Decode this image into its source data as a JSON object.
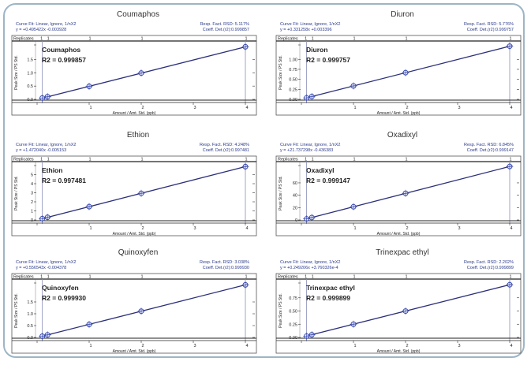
{
  "colors": {
    "line": "#2b2f7a",
    "marker": "#3a4bb0",
    "frame": "#9db5c4",
    "header_text": "#2b3a8a",
    "guide": "#8a90b8"
  },
  "common": {
    "replicates_label": "Replicates",
    "xlabel": "Amount / Amt. Std. (ppb)",
    "ylabel": "Peak Size / PS Std.",
    "x_ticks": [
      "1",
      "2",
      "3",
      "4"
    ],
    "x_values": [
      0.1,
      0.2,
      1,
      2,
      4
    ],
    "replicate_counts": [
      "1",
      "1",
      "1",
      "1",
      "1"
    ]
  },
  "chart_data": [
    {
      "type": "scatter",
      "title": "Coumaphos",
      "fit_line": "Curve Fit: Linear,  Ignore,   1/nX2",
      "equation": "y =   +0.495422x   -0.003928",
      "rsd": "Resp. Fact. RSD: 5.117%",
      "coeff": "Coeff. Det.(r2):0.999857",
      "annotation_name": "Coumaphos",
      "annotation_r2": "R2 = 0.999857",
      "x": [
        0.1,
        0.2,
        1,
        2,
        4
      ],
      "y": [
        0.05,
        0.1,
        0.49,
        0.99,
        1.98
      ],
      "slope": 0.495422,
      "intercept": -0.003928,
      "y_ticks": [
        "0.0",
        "0.5",
        "1.0",
        "1.5"
      ],
      "y_tick_values": [
        0,
        0.5,
        1.0,
        1.5
      ],
      "ylim": [
        0,
        2.05
      ],
      "xlim": [
        0,
        4.15
      ]
    },
    {
      "type": "scatter",
      "title": "Diuron",
      "fit_line": "Curve Fit: Linear,  Ignore,   1/nX2",
      "equation": "y =   +0.331258x   +0.003396",
      "rsd": "Resp. Fact. RSD: 5.776%",
      "coeff": "Coeff. Det.(r2):0.999757",
      "annotation_name": "Diuron",
      "annotation_r2": "R2 = 0.999757",
      "x": [
        0.1,
        0.2,
        1,
        2,
        4
      ],
      "y": [
        0.036,
        0.07,
        0.335,
        0.666,
        1.329
      ],
      "slope": 0.331258,
      "intercept": 0.003396,
      "y_ticks": [
        "0.00",
        "0.25",
        "0.50",
        "0.75",
        "1.00"
      ],
      "y_tick_values": [
        0,
        0.25,
        0.5,
        0.75,
        1.0
      ],
      "ylim": [
        0,
        1.36
      ],
      "xlim": [
        0,
        4.15
      ]
    },
    {
      "type": "scatter",
      "title": "Ethion",
      "fit_line": "Curve Fit: Linear,  Ignore,   1/nX2",
      "equation": "y =   +1.472040x   -0.005153",
      "rsd": "Resp. Fact. RSD: 4.248%",
      "coeff": "Coeff. Det.(r2):0.997481",
      "annotation_name": "Ethion",
      "annotation_r2": "R2 = 0.997481",
      "x": [
        0.1,
        0.2,
        1,
        2,
        4
      ],
      "y": [
        0.14,
        0.29,
        1.47,
        2.94,
        5.88
      ],
      "slope": 1.47204,
      "intercept": -0.005153,
      "y_ticks": [
        "0",
        "1",
        "2",
        "3",
        "4",
        "5"
      ],
      "y_tick_values": [
        0,
        1,
        2,
        3,
        4,
        5
      ],
      "ylim": [
        0,
        6.0
      ],
      "xlim": [
        0,
        4.15
      ]
    },
    {
      "type": "scatter",
      "title": "Oxadixyl",
      "fit_line": "Curve Fit: Linear,  Ignore,   1/nX2",
      "equation": "y =   +21.737298x   -0.436383",
      "rsd": "Resp. Fact. RSD: 6.845%",
      "coeff": "Coeff. Det.(r2):0.999147",
      "annotation_name": "Oxadixyl",
      "annotation_r2": "R2 = 0.999147",
      "x": [
        0.1,
        0.2,
        1,
        2,
        4
      ],
      "y": [
        1.7,
        3.9,
        21.3,
        43.0,
        86.5
      ],
      "slope": 21.737298,
      "intercept": -0.436383,
      "y_ticks": [
        "0",
        "20",
        "40",
        "60"
      ],
      "y_tick_values": [
        0,
        20,
        40,
        60
      ],
      "ylim": [
        0,
        88
      ],
      "xlim": [
        0,
        4.15
      ]
    },
    {
      "type": "scatter",
      "title": "Quinoxyfen",
      "fit_line": "Curve Fit: Linear,  Ignore,   1/nX2",
      "equation": "y =   +0.556543x   -0.004378",
      "rsd": "Resp. Fact. RSD: 3.038%",
      "coeff": "Coeff. Det.(r2):0.999930",
      "annotation_name": "Quinoxyfen",
      "annotation_r2": "R2 = 0.999930",
      "x": [
        0.1,
        0.2,
        1,
        2,
        4
      ],
      "y": [
        0.05,
        0.11,
        0.55,
        1.11,
        2.22
      ],
      "slope": 0.556543,
      "intercept": -0.004378,
      "y_ticks": [
        "0.0",
        "0.5",
        "1.0",
        "1.5"
      ],
      "y_tick_values": [
        0,
        0.5,
        1.0,
        1.5
      ],
      "ylim": [
        0,
        2.3
      ],
      "xlim": [
        0,
        4.15
      ]
    },
    {
      "type": "scatter",
      "title": "Trinexpac ethyl",
      "fit_line": "Curve Fit: Linear,  Ignore,   1/nX2",
      "equation": "y =   +0.249206x   +3.760326e-4",
      "rsd": "Resp. Fact. RSD: 2.202%",
      "coeff": "Coeff. Det.(r2):0.999899",
      "annotation_name": "Trinexpac ethyl",
      "annotation_r2": "R2 = 0.999899",
      "x": [
        0.1,
        0.2,
        1,
        2,
        4
      ],
      "y": [
        0.025,
        0.05,
        0.25,
        0.499,
        0.997
      ],
      "slope": 0.249206,
      "intercept": 0.000376,
      "y_ticks": [
        "0.00",
        "0.25",
        "0.50",
        "0.75"
      ],
      "y_tick_values": [
        0,
        0.25,
        0.5,
        0.75
      ],
      "ylim": [
        0,
        1.03
      ],
      "xlim": [
        0,
        4.15
      ]
    }
  ]
}
